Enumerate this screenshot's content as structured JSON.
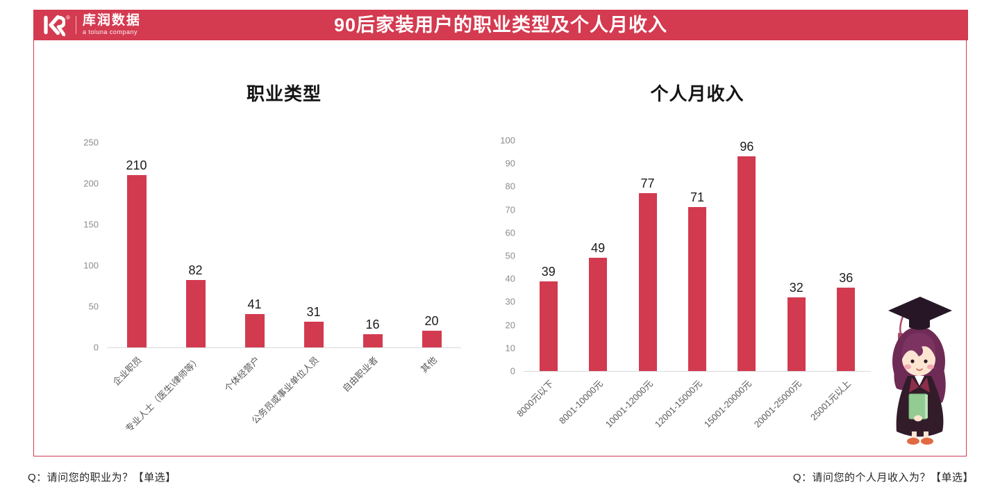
{
  "header": {
    "logo": {
      "brand": "库润数据",
      "tagline": "a toluna company",
      "registered": "®"
    },
    "title": "90后家装用户的职业类型及个人月收入"
  },
  "chart_data": [
    {
      "type": "bar",
      "title": "职业类型",
      "categories": [
        "企业职员",
        "专业人士（医生\\律师等）",
        "个体经营户",
        "公务员或事业单位人员",
        "自由职业者",
        "其他"
      ],
      "values": [
        210,
        82,
        41,
        31,
        16,
        20
      ],
      "xlabel": "",
      "ylabel": "",
      "ylim": [
        0,
        250
      ],
      "yticks": [
        0,
        50,
        100,
        150,
        200,
        250
      ],
      "grid": false,
      "legend": "none",
      "value_labels": true,
      "x_tick_rotation": -45,
      "bar_color": "#d23a50"
    },
    {
      "type": "bar",
      "title": "个人月收入",
      "categories": [
        "8000元以下",
        "8001-10000元",
        "10001-12000元",
        "12001-15000元",
        "15001-20000元",
        "20001-25000元",
        "25001元以上"
      ],
      "values": [
        39,
        49,
        77,
        71,
        96,
        32,
        36
      ],
      "xlabel": "",
      "ylabel": "",
      "ylim": [
        0,
        100
      ],
      "yticks": [
        0,
        10,
        20,
        30,
        40,
        50,
        60,
        70,
        80,
        90,
        100
      ],
      "grid": false,
      "legend": "none",
      "value_labels": true,
      "x_tick_rotation": -45,
      "bar_color": "#d23a50"
    }
  ],
  "footer": {
    "left_question": "Q：请问您的职业为？【单选】",
    "right_question": "Q：请问您的个人月收入为？【单选】"
  },
  "colors": {
    "accent_red": "#d43a50",
    "bar_red": "#d23a50",
    "axis_line": "#d9d9d9",
    "tick_text": "#8c8c8c",
    "x_label_text": "#595959"
  },
  "illustration": "graduate-girl"
}
